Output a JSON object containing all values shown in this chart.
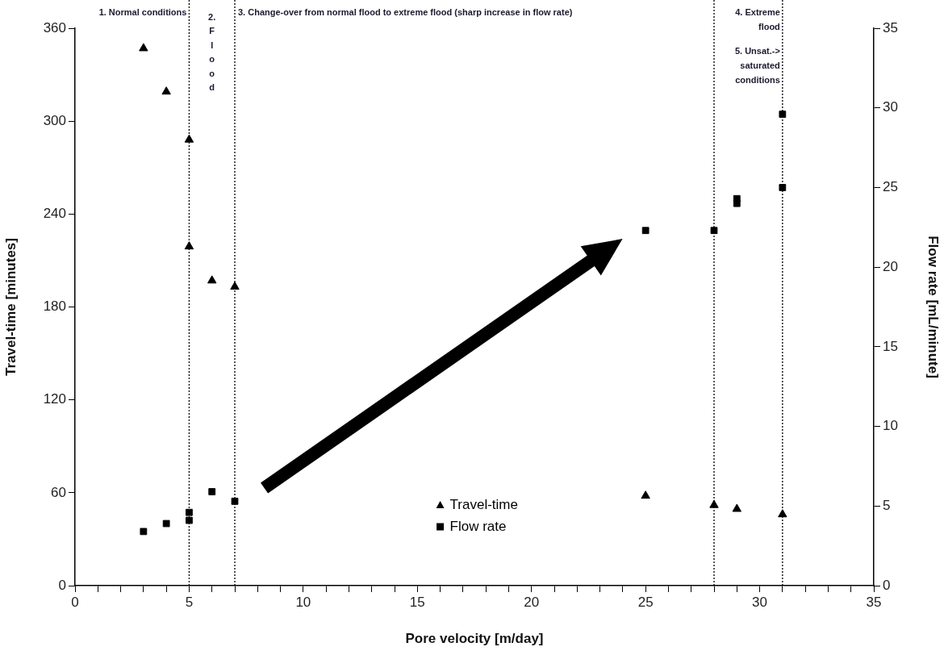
{
  "chart_data": {
    "type": "scatter",
    "xlabel": "Pore velocity [m/day]",
    "ylabel": "Travel-time [minutes]",
    "y2label": "Flow rate [mL/minute]",
    "series": [
      {
        "name": "Travel-time",
        "color": "#000000",
        "marker": "triangle",
        "x": [
          3,
          4,
          5,
          5,
          6,
          7,
          25,
          28,
          29,
          31
        ],
        "values": [
          347,
          319,
          288,
          219,
          197,
          193,
          58,
          52,
          49.5,
          46
        ]
      },
      {
        "name": "Flow rate",
        "color": "#000000",
        "marker": "square",
        "axis": "y2",
        "x": [
          3,
          4,
          5,
          5,
          6,
          7,
          25,
          28,
          29,
          29,
          31,
          31
        ],
        "values": [
          3.4,
          3.9,
          4.6,
          4.1,
          5.9,
          5.3,
          22.3,
          22.3,
          24.3,
          24.0,
          29.6,
          25.0
        ]
      }
    ],
    "xlim": [
      0,
      35
    ],
    "xticks": [
      0,
      {
        "value": 1,
        "label": null
      },
      {
        "value": 2,
        "label": null
      },
      {
        "value": 3,
        "label": null
      },
      {
        "value": 4,
        "label": null
      },
      5,
      {
        "value": 6,
        "label": null
      },
      {
        "value": 7,
        "label": null
      },
      {
        "value": 8,
        "label": null
      },
      {
        "value": 9,
        "label": null
      },
      10,
      {
        "value": 11,
        "label": null
      },
      {
        "value": 12,
        "label": null
      },
      {
        "value": 13,
        "label": null
      },
      {
        "value": 14,
        "label": null
      },
      15,
      {
        "value": 16,
        "label": null
      },
      {
        "value": 17,
        "label": null
      },
      {
        "value": 18,
        "label": null
      },
      {
        "value": 19,
        "label": null
      },
      20,
      {
        "value": 21,
        "label": null
      },
      {
        "value": 22,
        "label": null
      },
      {
        "value": 23,
        "label": null
      },
      {
        "value": 24,
        "label": null
      },
      25,
      {
        "value": 26,
        "label": null
      },
      {
        "value": 27,
        "label": null
      },
      {
        "value": 28,
        "label": null
      },
      {
        "value": 29,
        "label": null
      },
      30,
      {
        "value": 31,
        "label": null
      },
      {
        "value": 32,
        "label": null
      },
      {
        "value": 33,
        "label": null
      },
      {
        "value": 34,
        "label": null
      },
      35
    ],
    "ylim": [
      0,
      360
    ],
    "yticks": [
      0,
      60,
      120,
      180,
      240,
      300,
      360
    ],
    "y2lim": [
      0,
      35
    ],
    "y2ticks": [
      0,
      5,
      10,
      15,
      20,
      25,
      30,
      35
    ],
    "ref_lines": [
      {
        "axis": "x",
        "value": 5,
        "line_style": "dotted",
        "color": "#000000"
      },
      {
        "axis": "x",
        "value": 7,
        "line_style": "dotted",
        "color": "#000000"
      },
      {
        "axis": "x",
        "value": 28,
        "line_style": "dotted",
        "color": "#000000"
      },
      {
        "axis": "x",
        "value": 31,
        "line_style": "dotted",
        "color": "#000000"
      }
    ],
    "annotations": [
      "1. Normal conditions",
      "2. Flood",
      "3. Change-over from normal flood to extreme flood (sharp increase in flow rate)",
      "4. Extreme flood",
      "5. Unsat.-> saturated conditions"
    ],
    "legend": "bottom",
    "grid": false
  }
}
